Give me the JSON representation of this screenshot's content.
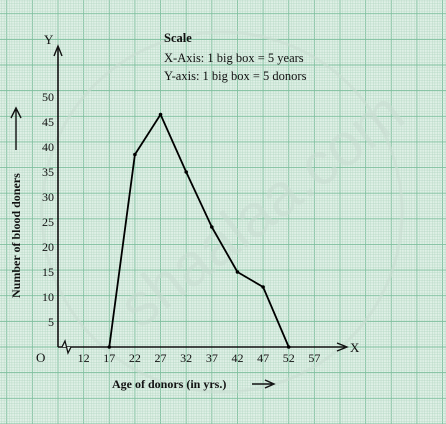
{
  "chart_data": {
    "type": "line",
    "xlabel": "Age of donors (in yrs.)",
    "ylabel": "Number of blood doners",
    "x_axis_letter": "X",
    "y_axis_letter": "Y",
    "origin_label": "O",
    "x_ticks": [
      12,
      17,
      22,
      27,
      32,
      37,
      42,
      47,
      52,
      57
    ],
    "y_ticks": [
      5,
      10,
      15,
      20,
      25,
      30,
      35,
      40,
      45,
      50
    ],
    "xlim": [
      7,
      62
    ],
    "ylim": [
      0,
      55
    ],
    "grid": true,
    "x_axis_break": true,
    "scale": {
      "title": "Scale",
      "x_line": "X-Axis: 1 big box = 5 years",
      "y_line": "Y-axis: 1 big box = 5 donors"
    },
    "series": [
      {
        "x": [
          17,
          22,
          27,
          32,
          37,
          42,
          47,
          52
        ],
        "y": [
          0,
          38.5,
          46.5,
          35,
          24,
          15,
          12,
          0
        ],
        "color": "#000000"
      }
    ]
  },
  "watermark": "shaalaa.com",
  "colors": {
    "background": "#dff0e6",
    "grid_minor": "#b3d6c2",
    "grid_major": "#7fbf9e"
  }
}
